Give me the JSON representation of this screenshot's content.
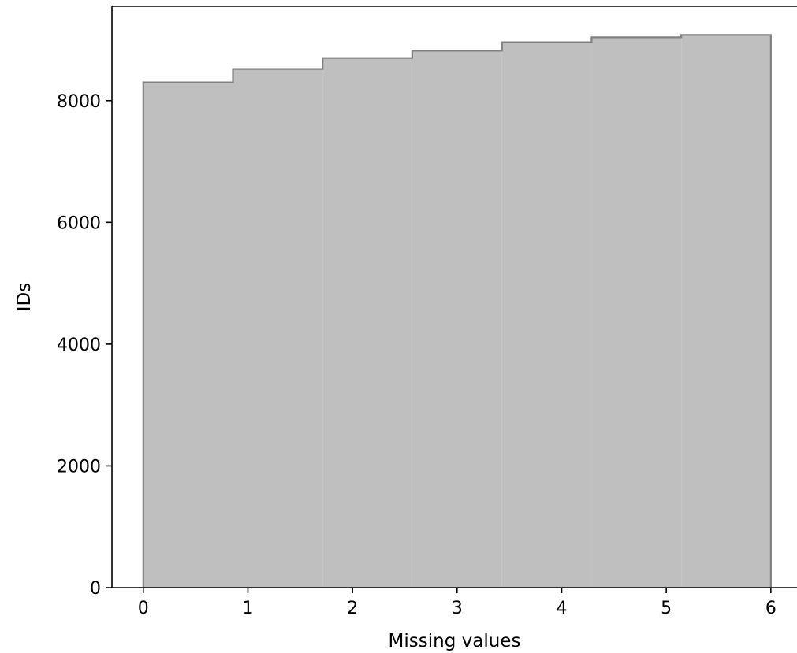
{
  "chart_data": {
    "type": "area",
    "title": "",
    "xlabel": "Missing values",
    "ylabel": "IDs",
    "xlim": [
      -0.3,
      6.25
    ],
    "ylim": [
      0,
      9550
    ],
    "grid": false,
    "legend": "none",
    "xticks": [
      0,
      1,
      2,
      3,
      4,
      5,
      6
    ],
    "xtick_labels": [
      "0",
      "1",
      "2",
      "3",
      "4",
      "5",
      "6"
    ],
    "yticks": [
      0,
      2000,
      4000,
      6000,
      8000
    ],
    "ytick_labels": [
      "0",
      "2000",
      "4000",
      "6000",
      "8000"
    ],
    "step_edges": [
      0,
      0.857,
      1.714,
      2.571,
      3.429,
      4.286,
      5.143,
      6.0
    ],
    "values": [
      8300,
      8520,
      8700,
      8820,
      8960,
      9040,
      9080
    ],
    "fill_color": "#bfbfbf",
    "edge_color": "#808080"
  }
}
